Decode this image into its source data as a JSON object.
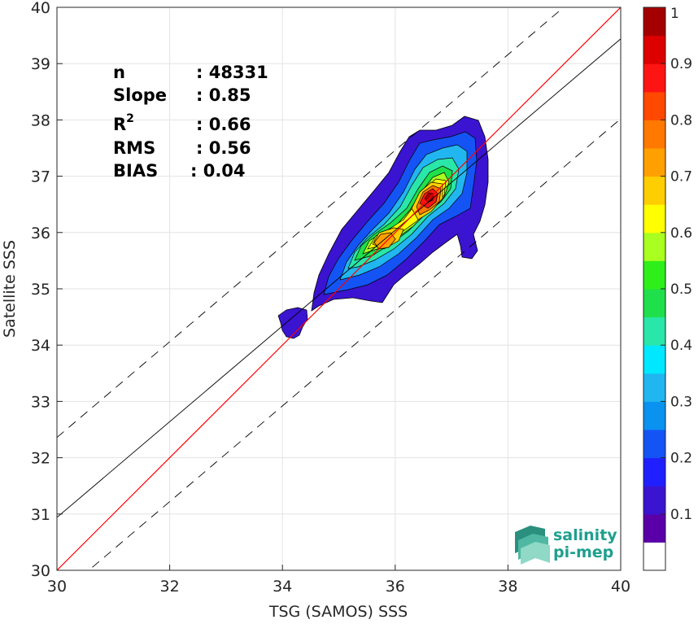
{
  "chart_data": {
    "type": "contour",
    "xlabel": "TSG (SAMOS) SSS",
    "ylabel": "Satellite SSS",
    "xlim": [
      30,
      40
    ],
    "ylim": [
      30,
      40
    ],
    "xticks": [
      30,
      32,
      34,
      36,
      38,
      40
    ],
    "yticks": [
      30,
      31,
      32,
      33,
      34,
      35,
      36,
      37,
      38,
      39,
      40
    ],
    "grid": true,
    "stats": {
      "n_label": "n",
      "n_value": ": 48331",
      "slope_label": "Slope",
      "slope_value": ": 0.85",
      "r2_base": "R",
      "r2_sup": "2",
      "r2_value": ": 0.66",
      "rms_label": "RMS",
      "rms_value": ": 0.56",
      "bias_label": "BIAS",
      "bias_value": ": 0.04"
    },
    "lines": {
      "one_to_one": {
        "slope": 1,
        "intercept": 0,
        "color": "#ff0000"
      },
      "regression": {
        "slope": 0.85,
        "intercept": 5.44,
        "color": "#000000"
      },
      "upper_dashed": {
        "slope": 0.85,
        "intercept": 6.86,
        "color": "#000000"
      },
      "lower_dashed": {
        "slope": 0.85,
        "intercept": 4.02,
        "color": "#000000"
      }
    },
    "density_peaks": [
      {
        "x": 36.6,
        "y": 36.65,
        "value": 1.0
      },
      {
        "x": 35.8,
        "y": 35.8,
        "value": 0.75
      }
    ],
    "colorbar": {
      "range": [
        0,
        1
      ],
      "ticks": [
        "0.1",
        "0.2",
        "0.3",
        "0.4",
        "0.5",
        "0.6",
        "0.7",
        "0.8",
        "0.9",
        "1"
      ],
      "colors": [
        "#ffffff",
        "#5a00a8",
        "#3a14d0",
        "#1f1fff",
        "#1454f5",
        "#0a92f0",
        "#22b6f0",
        "#00e8ff",
        "#2ae6a8",
        "#1fe04a",
        "#2fef1a",
        "#a8ff20",
        "#ffff00",
        "#ffce00",
        "#ffa000",
        "#ff7800",
        "#ff4800",
        "#ff1414",
        "#dc0000",
        "#a50000"
      ]
    }
  },
  "logo": {
    "line1": "salinity",
    "line2": "pi-mep"
  }
}
